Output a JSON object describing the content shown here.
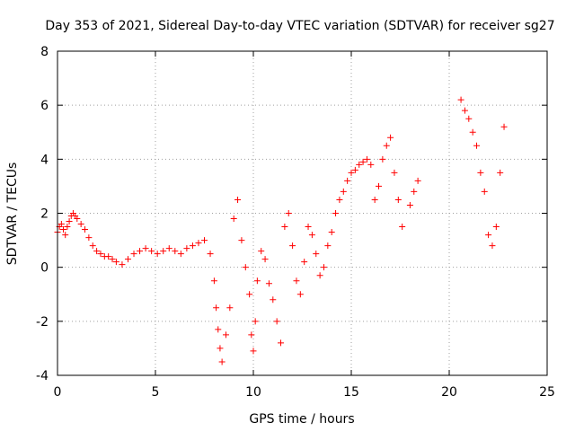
{
  "chart_data": {
    "type": "scatter",
    "title": "Day 353 of 2021, Sidereal Day-to-day VTEC variation (SDTVAR) for receiver sg27",
    "xlabel": "GPS time / hours",
    "ylabel": "SDTVAR / TECUs",
    "xlim": [
      0,
      25
    ],
    "ylim": [
      -4,
      8
    ],
    "xticks": [
      0,
      5,
      10,
      15,
      20,
      25
    ],
    "yticks": [
      -4,
      -2,
      0,
      2,
      4,
      6,
      8
    ],
    "xtick_labels": [
      "0",
      "5",
      "10",
      "15",
      "20",
      "25"
    ],
    "ytick_labels": [
      "-4",
      "-2",
      "0",
      "2",
      "4",
      "6",
      "8"
    ],
    "grid": true,
    "marker": "plus",
    "color": "#ff0000",
    "series": [
      {
        "name": "sg27",
        "x": [
          0.0,
          0.1,
          0.2,
          0.3,
          0.4,
          0.5,
          0.6,
          0.7,
          0.8,
          0.9,
          1.0,
          1.2,
          1.4,
          1.6,
          1.8,
          2.0,
          2.2,
          2.4,
          2.6,
          2.8,
          3.0,
          3.3,
          3.6,
          3.9,
          4.2,
          4.5,
          4.8,
          5.1,
          5.4,
          5.7,
          6.0,
          6.3,
          6.6,
          6.9,
          7.2,
          7.5,
          7.8,
          8.0,
          8.1,
          8.2,
          8.3,
          8.4,
          8.6,
          8.8,
          9.0,
          9.2,
          9.4,
          9.6,
          9.8,
          9.9,
          10.0,
          10.1,
          10.2,
          10.4,
          10.6,
          10.8,
          11.0,
          11.2,
          11.4,
          11.6,
          11.8,
          12.0,
          12.2,
          12.4,
          12.6,
          12.8,
          13.0,
          13.2,
          13.4,
          13.6,
          13.8,
          14.0,
          14.2,
          14.4,
          14.6,
          14.8,
          15.0,
          15.2,
          15.4,
          15.6,
          15.8,
          16.0,
          16.2,
          16.4,
          16.6,
          16.8,
          17.0,
          17.2,
          17.4,
          17.6,
          18.0,
          18.2,
          18.4,
          20.6,
          20.8,
          21.0,
          21.2,
          21.4,
          21.6,
          21.8,
          22.0,
          22.2,
          22.4,
          22.6,
          22.8
        ],
        "y": [
          1.3,
          1.5,
          1.6,
          1.4,
          1.2,
          1.5,
          1.7,
          1.9,
          2.0,
          1.9,
          1.8,
          1.6,
          1.4,
          1.1,
          0.8,
          0.6,
          0.5,
          0.4,
          0.4,
          0.3,
          0.2,
          0.1,
          0.3,
          0.5,
          0.6,
          0.7,
          0.6,
          0.5,
          0.6,
          0.7,
          0.6,
          0.5,
          0.7,
          0.8,
          0.9,
          1.0,
          0.5,
          -0.5,
          -1.5,
          -2.3,
          -3.0,
          -3.5,
          -2.5,
          -1.5,
          1.8,
          2.5,
          1.0,
          0.0,
          -1.0,
          -2.5,
          -3.1,
          -2.0,
          -0.5,
          0.6,
          0.3,
          -0.6,
          -1.2,
          -2.0,
          -2.8,
          1.5,
          2.0,
          0.8,
          -0.5,
          -1.0,
          0.2,
          1.5,
          1.2,
          0.5,
          -0.3,
          0.0,
          0.8,
          1.3,
          2.0,
          2.5,
          2.8,
          3.2,
          3.5,
          3.6,
          3.8,
          3.9,
          4.0,
          3.8,
          2.5,
          3.0,
          4.0,
          4.5,
          4.8,
          3.5,
          2.5,
          1.5,
          2.3,
          2.8,
          3.2,
          6.2,
          5.8,
          5.5,
          5.0,
          4.5,
          3.5,
          2.8,
          1.2,
          0.8,
          1.5,
          3.5,
          5.2
        ]
      }
    ]
  }
}
